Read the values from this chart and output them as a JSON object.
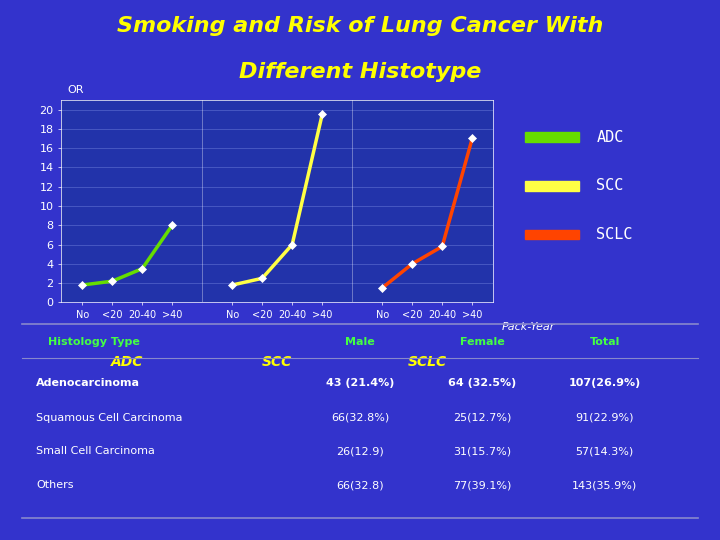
{
  "title_line1": "Smoking and Risk of Lung Cancer With",
  "title_line2": "Different Histotype",
  "title_color": "#FFFF00",
  "title_fontstyle": "italic",
  "title_fontsize": 16,
  "bg_color": "#3333CC",
  "plot_bg": "#2233AA",
  "separator_color": "#44CC44",
  "ylabel": "OR",
  "xlabel": "Pack-Year",
  "yticks": [
    0,
    2,
    4,
    6,
    8,
    10,
    12,
    14,
    16,
    18,
    20
  ],
  "tick_color": "white",
  "tick_fontsize": 8,
  "grid_color": "#5566CC",
  "group_label_color": "#FFFF00",
  "group_label_fontsize": 10,
  "xtick_labels": [
    "No",
    "<20",
    "20-40",
    ">40"
  ],
  "adc_values": [
    1.8,
    2.2,
    3.5,
    8.0
  ],
  "scc_values": [
    1.8,
    2.5,
    6.0,
    19.5
  ],
  "sclc_values": [
    1.5,
    4.0,
    5.8,
    17.0
  ],
  "adc_color": "#66DD00",
  "scc_color": "#FFFF44",
  "sclc_color": "#FF4400",
  "legend_labels": [
    "ADC",
    "SCC",
    "SCLC"
  ],
  "legend_colors": [
    "#66DD00",
    "#FFFF44",
    "#FF4400"
  ],
  "legend_fontsize": 11,
  "legend_text_color": "white",
  "marker": "D",
  "marker_color": "white",
  "marker_size": 4,
  "line_width": 2.5,
  "table_header": [
    "Histology Type",
    "Male",
    "Female",
    "Total"
  ],
  "table_header_color": "#44FF44",
  "table_rows": [
    [
      "Adenocarcinoma",
      "43 (21.4%)",
      "64 (32.5%)",
      "107(26.9%)"
    ],
    [
      "Squamous Cell Carcinoma",
      "66(32.8%)",
      "25(12.7%)",
      "91(22.9%)"
    ],
    [
      "Small Cell Carcinoma",
      "26(12.9)",
      "31(15.7%)",
      "57(14.3%)"
    ],
    [
      "Others",
      "66(32.8)",
      "77(39.1%)",
      "143(35.9%)"
    ]
  ],
  "table_row_bold": [
    true,
    false,
    false,
    false
  ],
  "table_text_color": "white",
  "table_header_fontsize": 8,
  "table_row_fontsize": 8,
  "divider_color": "#8888CC",
  "ylim": [
    0,
    21
  ]
}
